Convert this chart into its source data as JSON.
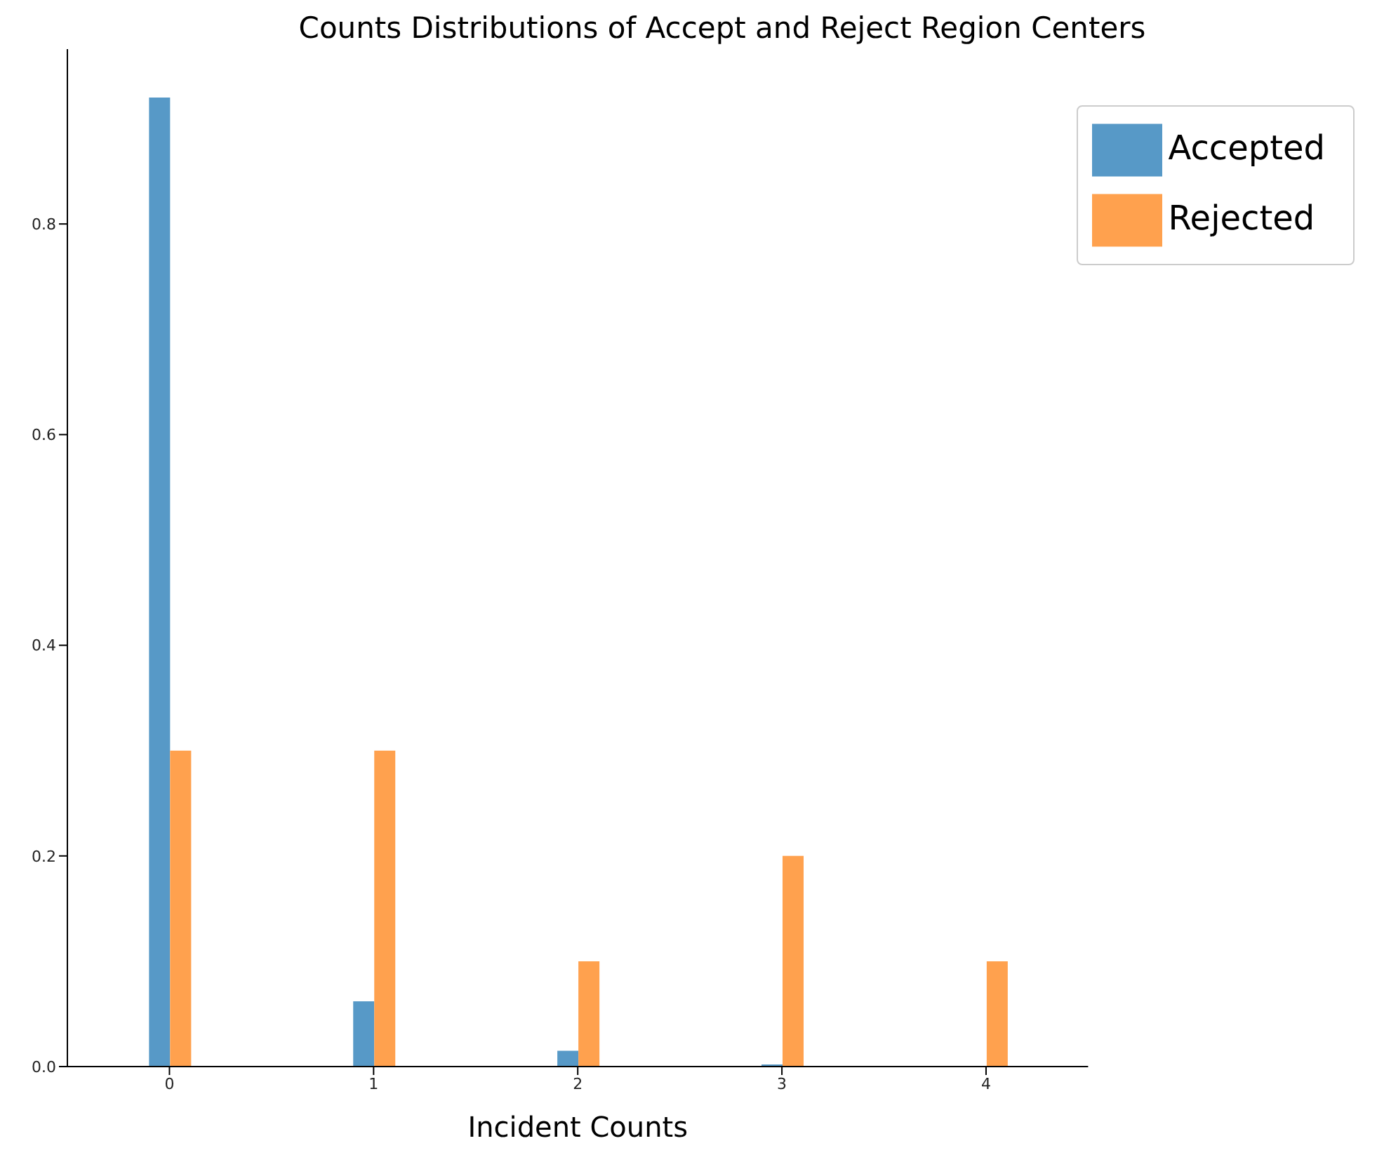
{
  "chart_data": {
    "type": "bar",
    "title": "Counts Distributions of Accept and Reject Region Centers",
    "xlabel": "Incident Counts",
    "categories": [
      "0",
      "1",
      "2",
      "3",
      "4"
    ],
    "series": [
      {
        "name": "Accepted",
        "color": "#5799c7",
        "values": [
          0.92,
          0.062,
          0.015,
          0.002,
          0
        ]
      },
      {
        "name": "Rejected",
        "color": "#ffa14e",
        "values": [
          0.3,
          0.3,
          0.1,
          0.2,
          0.1
        ]
      }
    ],
    "ylim": [
      0,
      0.966
    ],
    "yticks": [
      {
        "value": 0,
        "label": "0.0"
      },
      {
        "value": 0.2,
        "label": "0.2"
      },
      {
        "value": 0.4,
        "label": "0.4"
      },
      {
        "value": 0.6,
        "label": "0.6"
      },
      {
        "value": 0.8,
        "label": "0.8"
      }
    ],
    "grid": false,
    "legend": "top right"
  }
}
